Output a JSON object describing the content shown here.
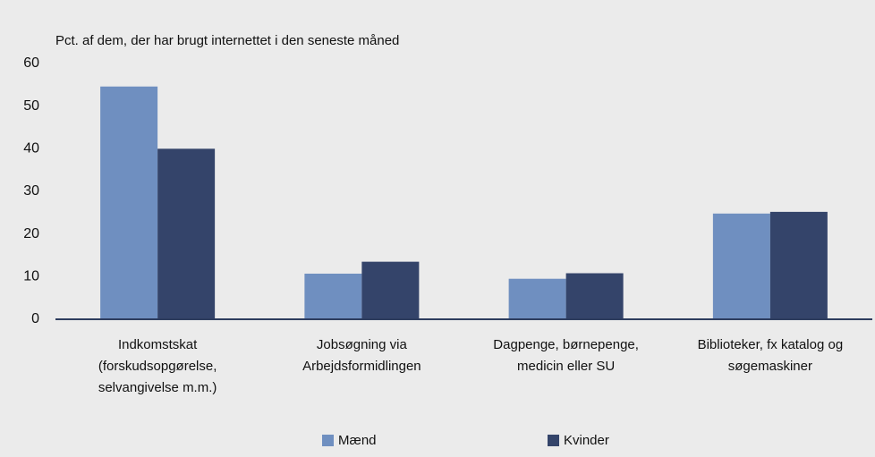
{
  "chart_data": {
    "type": "bar",
    "title": "Pct. af dem, der har brugt internettet i den seneste måned",
    "categories": [
      [
        "Indkomstskat",
        "(forskudsopgørelse,",
        "selvangivelse m.m.)"
      ],
      [
        "Jobsøgning via",
        "Arbejdsformidlingen"
      ],
      [
        "Dagpenge, børnepenge,",
        "medicin eller SU"
      ],
      [
        "Biblioteker, fx katalog og",
        "søgemaskiner"
      ]
    ],
    "series": [
      {
        "name": "Mænd",
        "color": "#6f8fc0",
        "values": [
          54.6,
          10.7,
          9.5,
          24.8
        ]
      },
      {
        "name": "Kvinder",
        "color": "#34446a",
        "values": [
          40,
          13.5,
          10.8,
          25.2
        ]
      }
    ],
    "ylim": [
      0,
      60
    ],
    "yticks": [
      0,
      10,
      20,
      30,
      40,
      50,
      60
    ],
    "grid": false
  }
}
